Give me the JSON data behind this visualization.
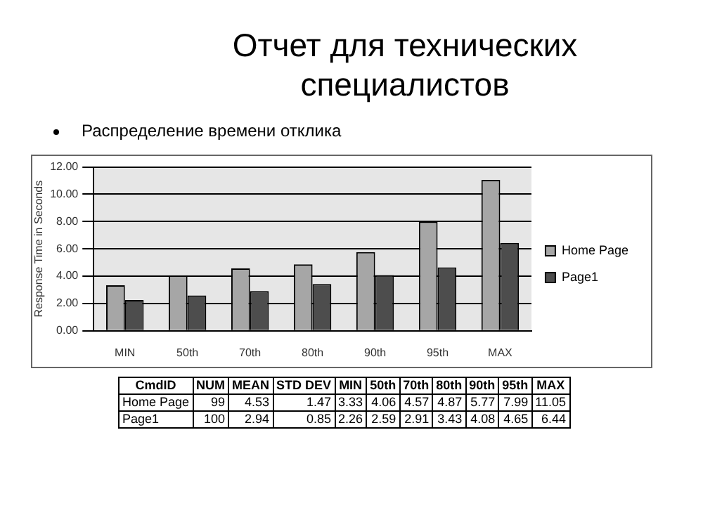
{
  "chart_data": {
    "type": "bar",
    "title": "Отчет для технических специалистов",
    "subtitle": "Распределение времени отклика",
    "ylabel": "Response Time in Seconds",
    "categories": [
      "MIN",
      "50th",
      "70th",
      "80th",
      "90th",
      "95th",
      "MAX"
    ],
    "series": [
      {
        "name": "Home Page",
        "color": "#a6a6a6",
        "values": [
          3.33,
          4.06,
          4.57,
          4.87,
          5.77,
          7.99,
          11.05
        ]
      },
      {
        "name": "Page1",
        "color": "#4d4d4d",
        "values": [
          2.26,
          2.59,
          2.91,
          3.43,
          4.08,
          4.65,
          6.44
        ]
      }
    ],
    "ylim": [
      0,
      12
    ],
    "yticks": [
      {
        "value": 0,
        "label": "0.00"
      },
      {
        "value": 2,
        "label": "2.00"
      },
      {
        "value": 4,
        "label": "4.00"
      },
      {
        "value": 6,
        "label": "6.00"
      },
      {
        "value": 8,
        "label": "8.00"
      },
      {
        "value": 10,
        "label": "10.00"
      },
      {
        "value": 12,
        "label": "12.00"
      }
    ],
    "grid": "y",
    "legend": "right",
    "annotations": [
      "CmdID",
      "NUM",
      "MEAN",
      "STD DEV",
      "MIN",
      "50th",
      "70th",
      "80th",
      "90th",
      "95th",
      "MAX",
      "Home Page",
      "99",
      "4.53",
      "1.47",
      "3.33",
      "4.06",
      "4.57",
      "4.87",
      "5.77",
      "7.99",
      "11.05",
      "Page1",
      "100",
      "2.94",
      "0.85",
      "2.26",
      "2.59",
      "2.91",
      "3.43",
      "4.08",
      "4.65",
      "6.44"
    ]
  }
}
